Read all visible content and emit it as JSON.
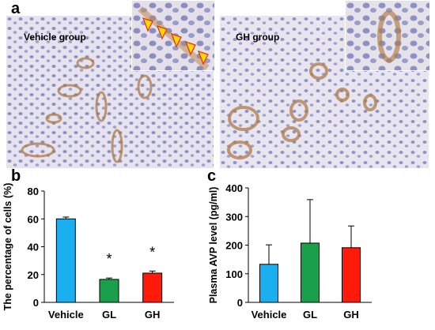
{
  "panels": {
    "a": {
      "letter": "a",
      "left_label": "Vehicle group",
      "right_label": "GH group"
    },
    "b": {
      "letter": "b",
      "chart_data": {
        "type": "bar",
        "ylabel": "The percentage of cells (%)",
        "categories": [
          "Vehicle",
          "GL",
          "GH"
        ],
        "values": [
          60,
          16.5,
          21
        ],
        "errors": [
          1.3,
          1.0,
          1.5
        ],
        "significance": [
          "",
          "*",
          "*"
        ],
        "colors": [
          "#1ab0f0",
          "#1aa04a",
          "#ff1a0a"
        ],
        "ylim": [
          0,
          80
        ],
        "yticks": [
          0,
          20,
          40,
          60,
          80
        ],
        "grid": false
      }
    },
    "c": {
      "letter": "c",
      "chart_data": {
        "type": "bar",
        "ylabel": "Plasma AVP level (pg/ml)",
        "categories": [
          "Vehicle",
          "GL",
          "GH"
        ],
        "values": [
          133,
          207,
          191
        ],
        "errors": [
          68,
          152,
          76
        ],
        "colors": [
          "#1ab0f0",
          "#1aa04a",
          "#ff1a0a"
        ],
        "ylim": [
          0,
          400
        ],
        "yticks": [
          0,
          100,
          200,
          300,
          400
        ],
        "grid": false
      }
    }
  }
}
